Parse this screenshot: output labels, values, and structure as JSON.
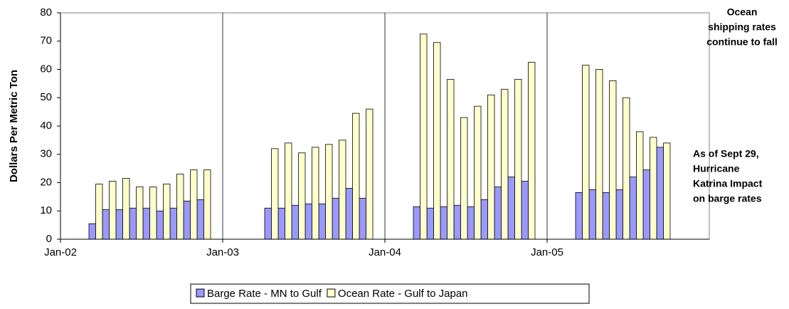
{
  "chart_data": {
    "type": "bar",
    "y_label": "Dollars Per Metric Ton",
    "categories": [
      "Jan-02",
      null,
      null,
      null,
      null,
      null,
      null,
      null,
      null,
      null,
      null,
      null,
      "Jan-03",
      null,
      null,
      null,
      null,
      null,
      null,
      null,
      null,
      null,
      null,
      null,
      "Jan-04",
      null,
      null,
      null,
      null,
      null,
      null,
      null,
      null,
      null,
      null,
      null,
      "Jan-05",
      null,
      null,
      null,
      null,
      null,
      null,
      null,
      null,
      null,
      null,
      null
    ],
    "series": [
      {
        "name": "Barge Rate - MN to Gulf",
        "color": "#9999ff",
        "values": [
          null,
          null,
          5.5,
          10.5,
          10.5,
          11,
          11,
          10,
          11,
          13.5,
          14,
          null,
          null,
          null,
          null,
          11,
          11,
          12,
          12.5,
          12.5,
          14.5,
          18,
          14.5,
          null,
          null,
          null,
          11.5,
          11,
          11.5,
          12,
          11.5,
          14,
          18.5,
          22,
          20.5,
          null,
          null,
          null,
          16.5,
          17.5,
          16.5,
          17.5,
          22,
          24.5,
          32.5,
          null,
          null,
          null
        ]
      },
      {
        "name": "Ocean Rate - Gulf to Japan",
        "color": "#ffffcc",
        "values": [
          null,
          null,
          19.5,
          20.5,
          21.5,
          18.5,
          18.5,
          19.5,
          23,
          24.5,
          24.5,
          null,
          null,
          null,
          null,
          32,
          34,
          30.5,
          32.5,
          33.5,
          35,
          44.5,
          46,
          null,
          null,
          null,
          72.5,
          69.5,
          56.5,
          43,
          47,
          51,
          53,
          56.5,
          62.5,
          null,
          null,
          null,
          61.5,
          60,
          56,
          50,
          38,
          36,
          34,
          null,
          null,
          null
        ]
      }
    ],
    "ylim": [
      0,
      80
    ],
    "yticks": [
      0,
      10,
      20,
      30,
      40,
      50,
      60,
      70,
      80
    ],
    "x_grid": true,
    "legend": "bottom",
    "annotations": [
      {
        "lines": [
          "Ocean",
          "shipping rates",
          "continue to fall"
        ]
      },
      {
        "lines": [
          "As of Sept 29,",
          "Hurricane",
          "Katrina Impact",
          "on barge rates"
        ]
      }
    ]
  }
}
